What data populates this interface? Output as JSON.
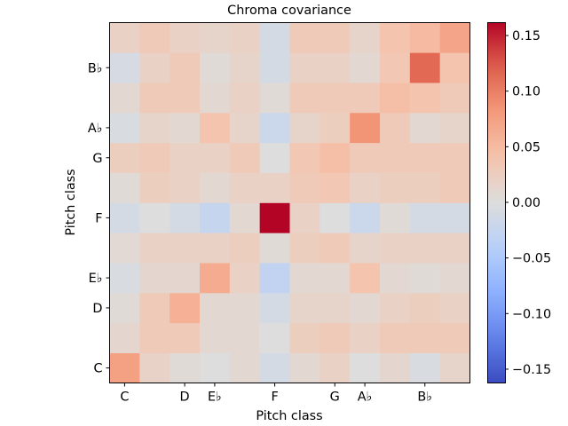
{
  "chart_data": {
    "type": "heatmap",
    "title": "Chroma covariance",
    "xlabel": "Pitch class",
    "ylabel": "Pitch class",
    "x_tick_labels": [
      "C",
      "D",
      "E♭",
      "F",
      "G",
      "A♭",
      "B♭"
    ],
    "x_tick_indices": [
      0,
      2,
      3,
      5,
      7,
      8,
      10
    ],
    "y_tick_labels": [
      "C",
      "D",
      "E♭",
      "F",
      "G",
      "A♭",
      "B♭"
    ],
    "y_tick_indices": [
      0,
      2,
      3,
      5,
      7,
      8,
      10
    ],
    "rows_bottom_to_top": [
      [
        0.075,
        0.018,
        0.005,
        0.0,
        0.01,
        -0.01,
        0.01,
        0.02,
        0.0,
        0.012,
        -0.005,
        0.015
      ],
      [
        0.012,
        0.03,
        0.03,
        0.01,
        0.01,
        0.0,
        0.025,
        0.03,
        0.02,
        0.03,
        0.03,
        0.03
      ],
      [
        0.005,
        0.03,
        0.06,
        0.01,
        0.01,
        -0.01,
        0.015,
        0.015,
        0.01,
        0.02,
        0.025,
        0.02
      ],
      [
        -0.005,
        0.012,
        0.012,
        0.065,
        0.02,
        -0.03,
        0.01,
        0.01,
        0.04,
        0.01,
        0.005,
        0.01
      ],
      [
        0.008,
        0.02,
        0.02,
        0.02,
        0.025,
        0.005,
        0.025,
        0.03,
        0.015,
        0.02,
        0.02,
        0.02
      ],
      [
        -0.01,
        0.0,
        -0.01,
        -0.025,
        0.01,
        0.162,
        0.02,
        0.0,
        -0.02,
        0.005,
        -0.01,
        -0.01
      ],
      [
        0.005,
        0.025,
        0.02,
        0.01,
        0.02,
        0.02,
        0.03,
        0.035,
        0.02,
        0.025,
        0.025,
        0.03
      ],
      [
        0.025,
        0.03,
        0.02,
        0.02,
        0.03,
        0.0,
        0.035,
        0.045,
        0.03,
        0.03,
        0.03,
        0.03
      ],
      [
        -0.005,
        0.015,
        0.01,
        0.04,
        0.015,
        -0.02,
        0.015,
        0.025,
        0.085,
        0.03,
        0.01,
        0.015
      ],
      [
        0.01,
        0.03,
        0.03,
        0.01,
        0.02,
        0.005,
        0.03,
        0.03,
        0.03,
        0.045,
        0.04,
        0.03
      ],
      [
        -0.008,
        0.02,
        0.03,
        0.005,
        0.015,
        -0.01,
        0.02,
        0.02,
        0.01,
        0.035,
        0.115,
        0.04
      ],
      [
        0.02,
        0.03,
        0.02,
        0.015,
        0.02,
        -0.01,
        0.03,
        0.03,
        0.015,
        0.04,
        0.05,
        0.07
      ]
    ],
    "colorbar": {
      "colormap": "coolwarm",
      "vmin": -0.162,
      "vmax": 0.162,
      "tick_values": [
        -0.15,
        -0.1,
        -0.05,
        0.0,
        0.05,
        0.1,
        0.15
      ],
      "tick_labels": [
        "−0.15",
        "−0.10",
        "−0.05",
        "0.00",
        "0.05",
        "0.10",
        "0.15"
      ]
    }
  }
}
